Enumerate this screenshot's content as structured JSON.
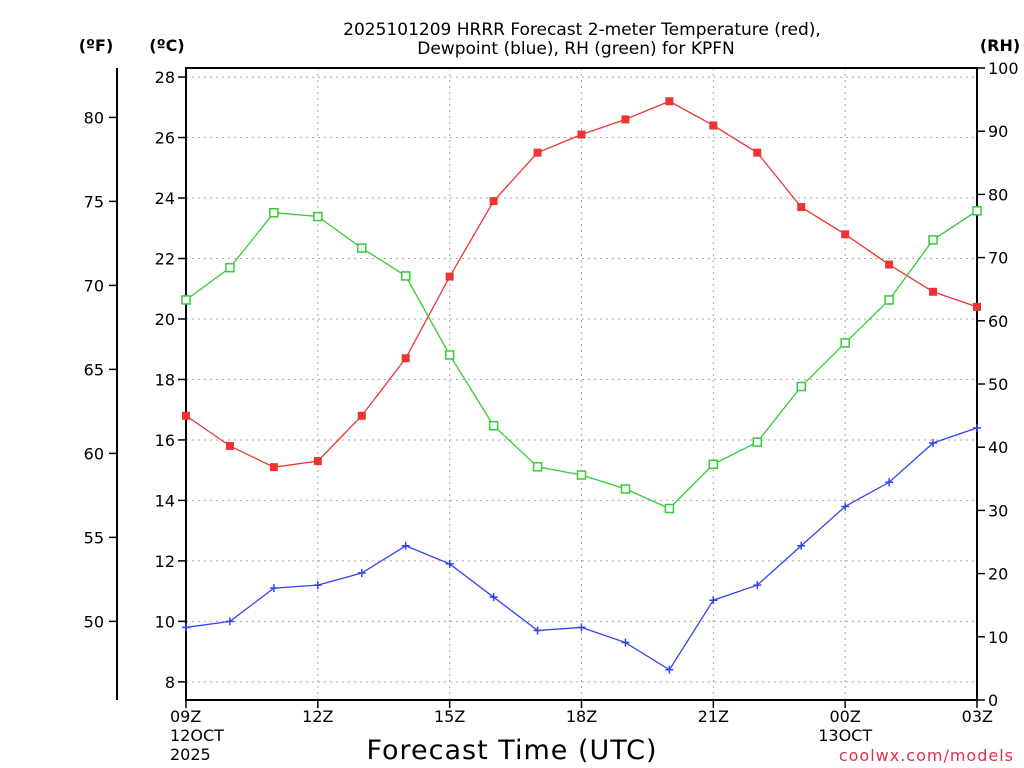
{
  "chart_data": {
    "type": "line",
    "title_line1": "2025101209 HRRR Forecast 2-meter Temperature (red),",
    "title_line2": "Dewpoint (blue), RH (green) for KPFN",
    "xlabel": "Forecast Time (UTC)",
    "credit": "coolwx.com/models",
    "units": {
      "fahrenheit": "(ºF)",
      "celsius": "(ºC)",
      "rh": "(RH)"
    },
    "x_hours": [
      0,
      1,
      2,
      3,
      4,
      5,
      6,
      7,
      8,
      9,
      10,
      11,
      12,
      13,
      14,
      15,
      16,
      17,
      18
    ],
    "x_ticks": [
      {
        "hour": 0,
        "label": "09Z",
        "sub1": "12OCT",
        "sub2": "2025"
      },
      {
        "hour": 3,
        "label": "12Z",
        "sub1": "",
        "sub2": ""
      },
      {
        "hour": 6,
        "label": "15Z",
        "sub1": "",
        "sub2": ""
      },
      {
        "hour": 9,
        "label": "18Z",
        "sub1": "",
        "sub2": ""
      },
      {
        "hour": 12,
        "label": "21Z",
        "sub1": "",
        "sub2": ""
      },
      {
        "hour": 15,
        "label": "00Z",
        "sub1": "13OCT",
        "sub2": ""
      },
      {
        "hour": 18,
        "label": "03Z",
        "sub1": "",
        "sub2": ""
      }
    ],
    "y_celsius": {
      "range": [
        7.4,
        28.3
      ],
      "ticks": [
        "8",
        "10",
        "12",
        "14",
        "16",
        "18",
        "20",
        "22",
        "24",
        "26",
        "28"
      ]
    },
    "y_fahrenheit": {
      "range": [
        45.32,
        82.94
      ],
      "ticks": [
        "50",
        "55",
        "60",
        "65",
        "70",
        "75",
        "80"
      ]
    },
    "y_rh": {
      "range": [
        0,
        100
      ],
      "ticks": [
        "0",
        "10",
        "20",
        "30",
        "40",
        "50",
        "60",
        "70",
        "80",
        "90",
        "100"
      ]
    },
    "series": [
      {
        "name": "2-meter Temperature",
        "axis": "celsius",
        "color": "#ee3333",
        "marker": "filled-square",
        "values": [
          16.8,
          15.8,
          15.1,
          15.3,
          16.8,
          18.7,
          21.4,
          23.9,
          25.5,
          26.1,
          26.6,
          27.2,
          26.4,
          25.5,
          23.7,
          22.8,
          21.8,
          20.9,
          20.4
        ]
      },
      {
        "name": "Dewpoint",
        "axis": "celsius",
        "color": "#3344ee",
        "marker": "plus",
        "values": [
          9.8,
          10.0,
          11.1,
          11.2,
          11.6,
          12.5,
          11.9,
          10.8,
          9.7,
          9.8,
          9.3,
          8.4,
          10.7,
          11.2,
          12.5,
          13.8,
          14.6,
          15.9,
          16.4
        ]
      },
      {
        "name": "RH",
        "axis": "rh",
        "color": "#33cc33",
        "marker": "open-square",
        "values": [
          63.3,
          68.4,
          77.1,
          76.5,
          71.5,
          67.1,
          54.6,
          43.4,
          36.9,
          35.6,
          33.4,
          30.3,
          37.3,
          40.8,
          49.6,
          56.5,
          63.3,
          72.8,
          77.4
        ]
      }
    ]
  }
}
